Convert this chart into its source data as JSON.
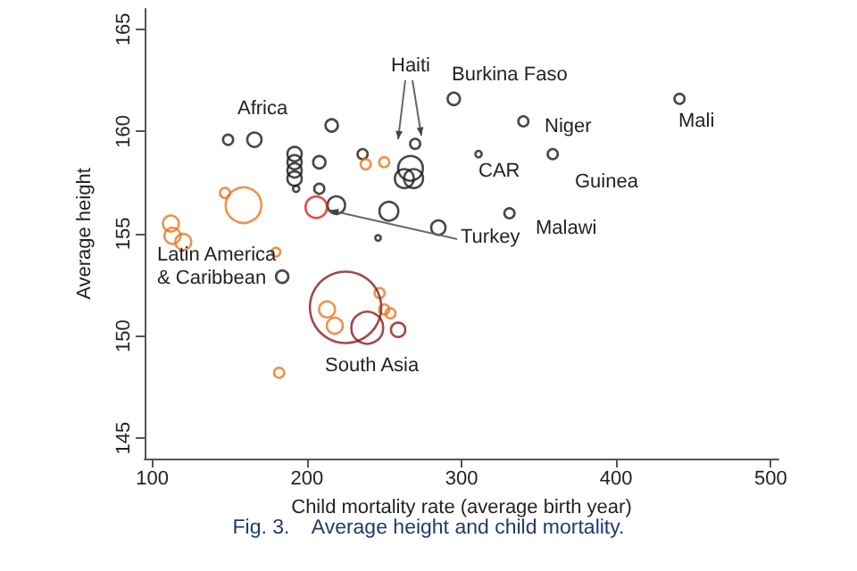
{
  "chart_data": {
    "type": "bubble",
    "xlabel": "Child mortality rate (average birth year)",
    "ylabel": "Average height",
    "xlim": [
      95,
      505
    ],
    "ylim": [
      144,
      166
    ],
    "xticks": [
      100,
      200,
      300,
      400,
      500
    ],
    "yticks": [
      145,
      150,
      155,
      160,
      165
    ],
    "grid": false,
    "marker": "circle",
    "series": [
      {
        "color": "#1a1a1a",
        "x": [
          149,
          166,
          216,
          192,
          192,
          192,
          192,
          193,
          208,
          208,
          219,
          236,
          270,
          267,
          263,
          269,
          253,
          285,
          246,
          331,
          295,
          311,
          340,
          359,
          441,
          184
        ],
        "values": [
          159.6,
          159.6,
          160.3,
          158.9,
          158.5,
          158.1,
          157.7,
          157.2,
          158.5,
          157.2,
          156.4,
          158.9,
          159.4,
          158.2,
          157.7,
          157.7,
          156.1,
          155.3,
          154.8,
          156.0,
          161.6,
          158.9,
          160.5,
          158.9,
          161.6,
          152.9
        ],
        "sizes": [
          0.02,
          0.04,
          0.03,
          0.04,
          0.04,
          0.04,
          0.04,
          0.008,
          0.03,
          0.02,
          0.06,
          0.02,
          0.02,
          0.12,
          0.07,
          0.07,
          0.07,
          0.04,
          0.006,
          0.02,
          0.03,
          0.008,
          0.02,
          0.02,
          0.02,
          0.03
        ]
      },
      {
        "color": "#e87722",
        "x": [
          159,
          147,
          112,
          120,
          113,
          180,
          238,
          250,
          213,
          218,
          247,
          250,
          254,
          182
        ],
        "values": [
          156.4,
          157.0,
          155.5,
          154.6,
          154.9,
          154.1,
          158.4,
          158.5,
          151.3,
          150.5,
          152.1,
          151.3,
          151.1,
          148.2
        ],
        "sizes": [
          0.25,
          0.02,
          0.05,
          0.05,
          0.05,
          0.015,
          0.02,
          0.02,
          0.05,
          0.05,
          0.02,
          0.02,
          0.02,
          0.02
        ]
      },
      {
        "color": "#8b1a1a",
        "x": [
          225,
          239,
          259
        ],
        "values": [
          151.4,
          150.4,
          150.3
        ],
        "sizes": [
          1,
          0.2,
          0.04
        ]
      },
      {
        "color": "#e0201b",
        "x": [
          206
        ],
        "values": [
          156.3
        ],
        "sizes": [
          0.09
        ]
      }
    ],
    "annotations": [
      "Africa",
      "Haiti",
      "Burkina Faso",
      "Niger",
      "Mali",
      "CAR",
      "Guinea",
      "Malawi",
      {
        "text": "Turkey",
        "x": 206,
        "y": 156.3
      },
      "Latin America\n& Caribbean",
      "South Asia",
      "Fig. 3.    Average height and child mortality."
    ]
  }
}
